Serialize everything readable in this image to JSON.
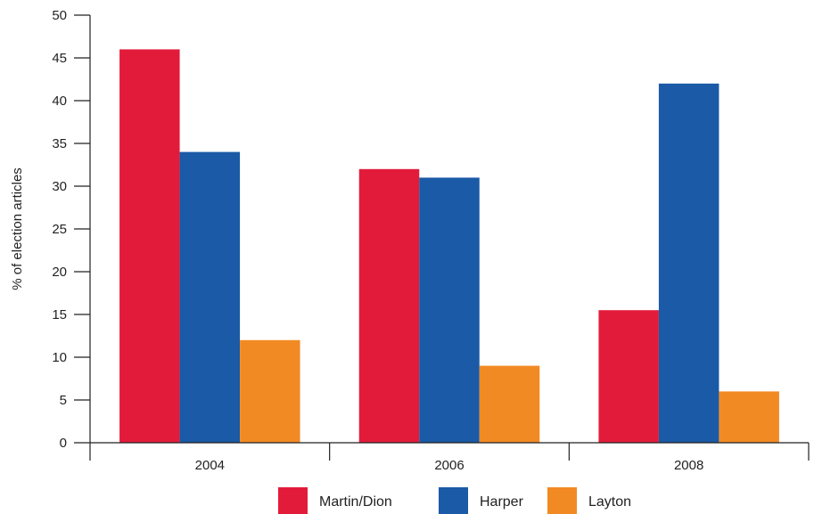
{
  "chart_data": {
    "type": "bar",
    "title": "",
    "xlabel": "",
    "ylabel": "% of election articles",
    "categories": [
      "2004",
      "2006",
      "2008"
    ],
    "series": [
      {
        "name": "Martin/Dion",
        "values": [
          46,
          32,
          15.5
        ]
      },
      {
        "name": "Harper",
        "values": [
          34,
          31,
          42
        ]
      },
      {
        "name": "Layton",
        "values": [
          12,
          9,
          6
        ]
      }
    ],
    "ylim": [
      0,
      50
    ],
    "yticks": [
      0,
      5,
      10,
      15,
      20,
      25,
      30,
      35,
      40,
      45,
      50
    ],
    "grid": false,
    "legend_position": "bottom"
  },
  "colors": {
    "Martin/Dion": "#e31b3b",
    "Harper": "#1a5aa6",
    "Layton": "#f28a24"
  }
}
